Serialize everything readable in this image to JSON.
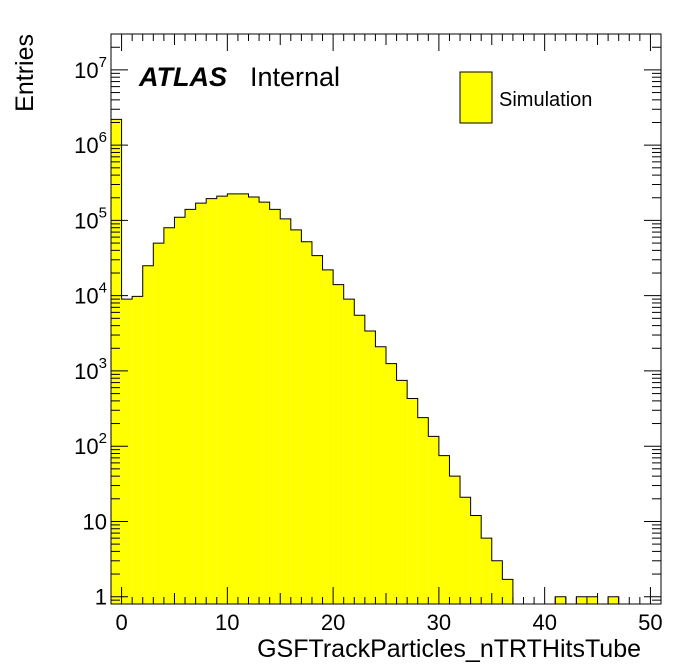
{
  "chart_data": {
    "type": "bar",
    "style": "histogram-step",
    "xlabel": "GSFTrackParticles_nTRTHitsTube",
    "ylabel": "Entries",
    "xlim": [
      -1,
      51
    ],
    "ylim": [
      0.8,
      30000000
    ],
    "yscale": "log",
    "xticks": [
      0,
      10,
      20,
      30,
      40,
      50
    ],
    "yticks": [
      {
        "value": 1,
        "base": "1",
        "exp": ""
      },
      {
        "value": 10,
        "base": "10",
        "exp": ""
      },
      {
        "value": 100,
        "base": "10",
        "exp": "2"
      },
      {
        "value": 1000,
        "base": "10",
        "exp": "3"
      },
      {
        "value": 10000,
        "base": "10",
        "exp": "4"
      },
      {
        "value": 100000,
        "base": "10",
        "exp": "5"
      },
      {
        "value": 1000000,
        "base": "10",
        "exp": "6"
      },
      {
        "value": 10000000,
        "base": "10",
        "exp": "7"
      }
    ],
    "bin_width": 1,
    "bins_low": [
      -1,
      0,
      1,
      2,
      3,
      4,
      5,
      6,
      7,
      8,
      9,
      10,
      11,
      12,
      13,
      14,
      15,
      16,
      17,
      18,
      19,
      20,
      21,
      22,
      23,
      24,
      25,
      26,
      27,
      28,
      29,
      30,
      31,
      32,
      33,
      34,
      35,
      36,
      37,
      38,
      39,
      40,
      41,
      42,
      43,
      44,
      45,
      46,
      47,
      48,
      49,
      50
    ],
    "values": [
      2200000,
      9000,
      9800,
      25000,
      50000,
      80000,
      110000,
      140000,
      170000,
      195000,
      210000,
      225000,
      225000,
      205000,
      175000,
      140000,
      105000,
      75000,
      52000,
      34000,
      22000,
      14000,
      9000,
      5500,
      3400,
      2100,
      1250,
      750,
      430,
      240,
      135,
      75,
      40,
      21,
      12,
      6,
      3,
      1.7,
      0,
      0,
      0,
      0,
      1,
      0,
      1,
      1,
      0,
      1,
      0,
      0,
      0,
      0
    ],
    "fill_color": "#ffff00",
    "line_color": "#000000",
    "legend": {
      "position": "top-right",
      "entries": [
        "Simulation"
      ]
    }
  },
  "labels": {
    "atlas": "ATLAS",
    "internal": "Internal"
  }
}
